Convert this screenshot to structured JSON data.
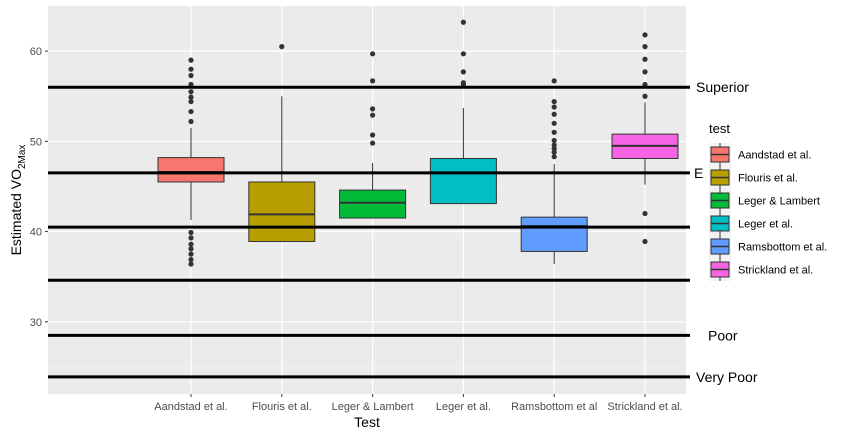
{
  "chart_data": {
    "type": "boxplot",
    "xlabel": "Test",
    "ylabel_main": "Estimated VO",
    "ylabel_sub": "2Max",
    "ylim": [
      22,
      65
    ],
    "yticks": [
      30,
      40,
      50,
      60
    ],
    "grid": true,
    "legend_position": "right",
    "legend_title": "test",
    "categories": [
      "Aandstad et al.",
      "Flouris et al.",
      "Leger & Lambert",
      "Leger et al.",
      "Ramsbottom et al.",
      "Strickland et al."
    ],
    "tick_labels": [
      "Aandstad et al.",
      "Flouris et al.",
      "Leger & Lambert",
      "Leger et al.",
      "Ramsbottom et al",
      "Strickland et al."
    ],
    "series": [
      {
        "name": "Aandstad et al.",
        "color": "#F8766D",
        "q1": 45.5,
        "median": 46.6,
        "q3": 48.2,
        "whisker_low": 41.3,
        "whisker_high": 51.5,
        "outliers": [
          52.2,
          53.3,
          54.4,
          54.9,
          55.5,
          56.3,
          57.3,
          58.0,
          59.0,
          39.9,
          39.3,
          38.6,
          38.1,
          37.5,
          36.9,
          36.4
        ]
      },
      {
        "name": "Flouris et al.",
        "color": "#B79F00",
        "q1": 38.9,
        "median": 41.9,
        "q3": 45.5,
        "whisker_low": 38.9,
        "whisker_high": 55.0,
        "outliers": [
          60.5
        ]
      },
      {
        "name": "Leger & Lambert",
        "color": "#00BA38",
        "q1": 41.5,
        "median": 43.2,
        "q3": 44.6,
        "whisker_low": 41.5,
        "whisker_high": 47.6,
        "outliers": [
          49.8,
          50.7,
          52.9,
          53.6,
          56.7,
          59.7
        ]
      },
      {
        "name": "Leger et al.",
        "color": "#00BFC4",
        "q1": 43.1,
        "median": 46.5,
        "q3": 48.1,
        "whisker_low": 43.1,
        "whisker_high": 53.7,
        "outliers": [
          56.3,
          56.5,
          57.7,
          59.7,
          63.2
        ]
      },
      {
        "name": "Ramsbottom et al.",
        "color": "#619CFF",
        "q1": 37.8,
        "median": 40.6,
        "q3": 41.6,
        "whisker_low": 36.4,
        "whisker_high": 47.5,
        "outliers": [
          48.3,
          48.8,
          49.2,
          49.6,
          50.1,
          51.0,
          52.0,
          53.0,
          53.8,
          54.4,
          56.7
        ]
      },
      {
        "name": "Strickland et al.",
        "color": "#F564E3",
        "q1": 48.1,
        "median": 49.5,
        "q3": 50.8,
        "whisker_low": 45.2,
        "whisker_high": 54.3,
        "outliers": [
          55.0,
          56.3,
          57.7,
          59.1,
          60.5,
          61.8,
          42.0,
          38.9
        ]
      }
    ],
    "reference_lines": [
      {
        "value": 56.0,
        "label": "Superior"
      },
      {
        "value": 46.5,
        "label": "E"
      },
      {
        "value": 40.5,
        "label": ""
      },
      {
        "value": 34.6,
        "label": ""
      },
      {
        "value": 28.5,
        "label": "Poor"
      },
      {
        "value": 23.9,
        "label": "Very Poor"
      }
    ]
  }
}
